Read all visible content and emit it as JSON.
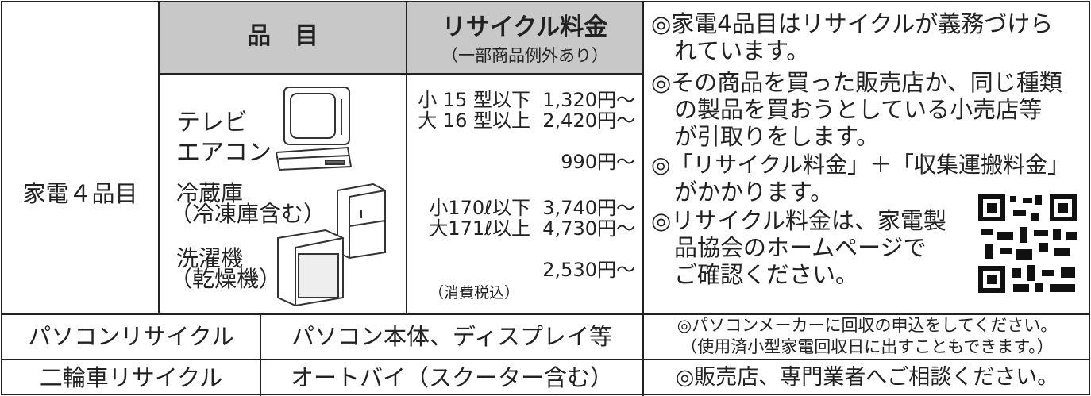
{
  "table": {
    "category": "家電４品目",
    "header": {
      "item": "品　目",
      "fee_title": "リサイクル料金",
      "fee_note": "（一部商品例外あり）"
    },
    "items": [
      {
        "name": [
          "テレビ"
        ],
        "fees": [
          "小 15 型以下  1,320円～",
          "大 16 型以上  2,420円～"
        ]
      },
      {
        "name": [
          "エアコン"
        ],
        "fees": [
          "990円～"
        ]
      },
      {
        "name": [
          "冷蔵庫",
          "（冷凍庫含む）"
        ],
        "fees": [
          "小170ℓ以下  3,740円～",
          "大171ℓ以上  4,730円～"
        ]
      },
      {
        "name": [
          "洗濯機",
          "（乾燥機）"
        ],
        "fees": [
          "2,530円～"
        ]
      }
    ],
    "tax_note": "（消費税込）",
    "notes": [
      "◎家電4品目はリサイクルが義務づけら",
      "れています。",
      "◎その商品を買った販売店か、同じ種類",
      "の製品を買おうとしている小売店等",
      "が引取りをします。",
      "◎「リサイクル料金」＋「収集運搬料金」",
      "がかかります。",
      "◎リサイクル料金は、家電製",
      "品協会のホームページで",
      "ご確認ください。"
    ],
    "rows": [
      {
        "category": "パソコンリサイクル",
        "item": "パソコン本体、ディスプレイ等",
        "note": [
          "◎パソコンメーカーに回収の申込をしてください。",
          "（使用済小型家電回収日に出すこともできます。）"
        ]
      },
      {
        "category": "二輪車リサイクル",
        "item": "オートバイ（スクーター含む）",
        "note": [
          "◎販売店、専門業者へご相談ください。"
        ]
      }
    ]
  }
}
